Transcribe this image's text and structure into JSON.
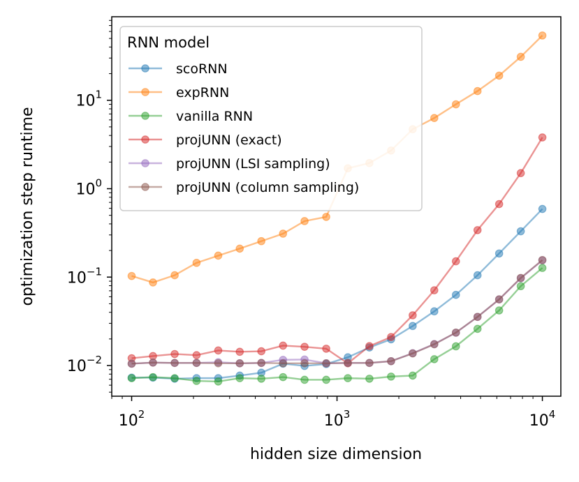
{
  "chart_data": {
    "type": "line",
    "xlabel": "hidden size dimension",
    "ylabel": "optimization step runtime",
    "x_scale": "log",
    "y_scale": "log",
    "xlim": [
      80,
      12300
    ],
    "ylim": [
      0.0045,
      88
    ],
    "x_ticks": [
      {
        "value": 100,
        "base": "10",
        "exp": "2"
      },
      {
        "value": 1000,
        "base": "10",
        "exp": "3"
      },
      {
        "value": 10000,
        "base": "10",
        "exp": "4"
      }
    ],
    "y_ticks": [
      {
        "value": 0.01,
        "base": "10",
        "exp": "−2"
      },
      {
        "value": 0.1,
        "base": "10",
        "exp": "−1"
      },
      {
        "value": 1,
        "base": "10",
        "exp": "0"
      },
      {
        "value": 10,
        "base": "10",
        "exp": "1"
      }
    ],
    "grid": false,
    "legend": {
      "title": "RNN model",
      "position": "top-left"
    },
    "x": [
      100,
      127,
      162,
      207,
      264,
      336,
      428,
      546,
      695,
      886,
      1129,
      1438,
      1833,
      2336,
      2976,
      3793,
      4833,
      6158,
      7848,
      10000
    ],
    "series": [
      {
        "name": "scoRNN",
        "color": "#1f77b4",
        "values": [
          0.0073,
          0.0073,
          0.0071,
          0.0072,
          0.0072,
          0.0077,
          0.0083,
          0.0105,
          0.0099,
          0.0104,
          0.0124,
          0.016,
          0.0198,
          0.028,
          0.041,
          0.063,
          0.105,
          0.185,
          0.33,
          0.59
        ]
      },
      {
        "name": "expRNN",
        "color": "#ff7f0e",
        "values": [
          0.103,
          0.087,
          0.105,
          0.145,
          0.175,
          0.21,
          0.255,
          0.31,
          0.43,
          0.48,
          1.7,
          1.95,
          2.7,
          4.7,
          6.3,
          9.0,
          12.7,
          19.0,
          31,
          54
        ]
      },
      {
        "name": "vanilla RNN",
        "color": "#2ca02c",
        "values": [
          0.0072,
          0.0074,
          0.0072,
          0.0067,
          0.0066,
          0.0072,
          0.0071,
          0.0074,
          0.0069,
          0.0069,
          0.0072,
          0.0071,
          0.0075,
          0.0077,
          0.0118,
          0.0165,
          0.026,
          0.042,
          0.079,
          0.127
        ]
      },
      {
        "name": "projUNN (exact)",
        "color": "#d62728",
        "values": [
          0.0121,
          0.0128,
          0.0135,
          0.0131,
          0.0148,
          0.0143,
          0.0145,
          0.0168,
          0.0163,
          0.0155,
          0.0106,
          0.0166,
          0.021,
          0.037,
          0.071,
          0.151,
          0.34,
          0.67,
          1.5,
          3.8
        ]
      },
      {
        "name": "projUNN (LSI sampling)",
        "color": "#9467bd",
        "values": [
          0.0105,
          0.0108,
          0.0107,
          0.0107,
          0.0109,
          0.0106,
          0.0107,
          0.0116,
          0.0117,
          0.0106,
          0.0107,
          0.0107,
          0.0112,
          0.0138,
          0.0175,
          0.0235,
          0.0355,
          0.056,
          0.097,
          0.155
        ]
      },
      {
        "name": "projUNN (column sampling)",
        "color": "#8c564b",
        "values": [
          0.0105,
          0.0108,
          0.0107,
          0.0107,
          0.0106,
          0.0106,
          0.0107,
          0.0106,
          0.0106,
          0.0106,
          0.0107,
          0.0107,
          0.0112,
          0.0137,
          0.0174,
          0.0236,
          0.0355,
          0.056,
          0.098,
          0.156
        ]
      }
    ]
  }
}
